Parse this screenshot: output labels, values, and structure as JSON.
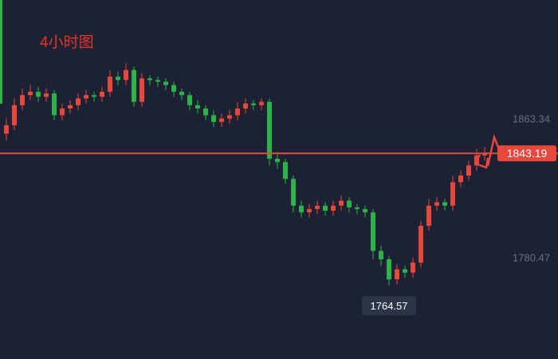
{
  "chart_data": {
    "type": "candlestick",
    "title": "4小时图",
    "up_color": "#e8473c",
    "down_color": "#2db24a",
    "open": [
      1855,
      1860,
      1872,
      1878,
      1880,
      1877,
      1879,
      1866,
      1870,
      1872,
      1876,
      1878,
      1877,
      1880,
      1889,
      1887,
      1893,
      1874,
      1888,
      1887,
      1886,
      1884,
      1880,
      1878,
      1872,
      1870,
      1866,
      1862,
      1864,
      1866,
      1870,
      1873,
      1872,
      1874,
      1840,
      1838,
      1828,
      1812,
      1808,
      1810,
      1812,
      1809,
      1812,
      1815,
      1811,
      1810,
      1808,
      1785,
      1780,
      1768,
      1774,
      1772,
      1778,
      1800,
      1812,
      1814,
      1812,
      1826,
      1830,
      1836,
      1842
    ],
    "high": [
      1864,
      1876,
      1882,
      1884,
      1883,
      1882,
      1881,
      1873,
      1875,
      1879,
      1881,
      1880,
      1883,
      1893,
      1892,
      1897,
      1895,
      1891,
      1890,
      1889,
      1888,
      1886,
      1882,
      1880,
      1875,
      1872,
      1869,
      1867,
      1869,
      1874,
      1876,
      1875,
      1876,
      1876,
      1844,
      1840,
      1830,
      1815,
      1813,
      1815,
      1814,
      1815,
      1818,
      1817,
      1813,
      1812,
      1810,
      1788,
      1782,
      1777,
      1776,
      1781,
      1803,
      1816,
      1817,
      1816,
      1830,
      1833,
      1839,
      1846,
      1847
    ],
    "low": [
      1851,
      1857,
      1869,
      1875,
      1874,
      1874,
      1863,
      1863,
      1867,
      1869,
      1873,
      1874,
      1874,
      1877,
      1884,
      1884,
      1871,
      1871,
      1884,
      1883,
      1881,
      1877,
      1875,
      1869,
      1867,
      1863,
      1859,
      1859,
      1861,
      1863,
      1867,
      1869,
      1869,
      1836,
      1834,
      1825,
      1808,
      1805,
      1805,
      1807,
      1806,
      1806,
      1809,
      1808,
      1807,
      1805,
      1780,
      1776,
      1764.57,
      1765,
      1769,
      1769,
      1775,
      1797,
      1809,
      1809,
      1809,
      1823,
      1827,
      1833,
      1839
    ],
    "close": [
      1860,
      1872,
      1878,
      1880,
      1877,
      1879,
      1866,
      1870,
      1872,
      1876,
      1878,
      1877,
      1880,
      1889,
      1887,
      1893,
      1874,
      1888,
      1887,
      1886,
      1884,
      1880,
      1878,
      1872,
      1870,
      1866,
      1862,
      1864,
      1866,
      1870,
      1873,
      1872,
      1874,
      1840,
      1838,
      1828,
      1812,
      1808,
      1810,
      1812,
      1809,
      1812,
      1815,
      1811,
      1810,
      1808,
      1785,
      1780,
      1768,
      1774,
      1772,
      1778,
      1800,
      1812,
      1814,
      1812,
      1826,
      1830,
      1836,
      1842,
      1843.19
    ],
    "ylim": [
      1720.45,
      1934.79
    ],
    "yticks": [
      1863.34,
      1780.47
    ],
    "last_price": 1843.19,
    "last_price_color": "#e8473c",
    "low_label": 1764.57
  }
}
